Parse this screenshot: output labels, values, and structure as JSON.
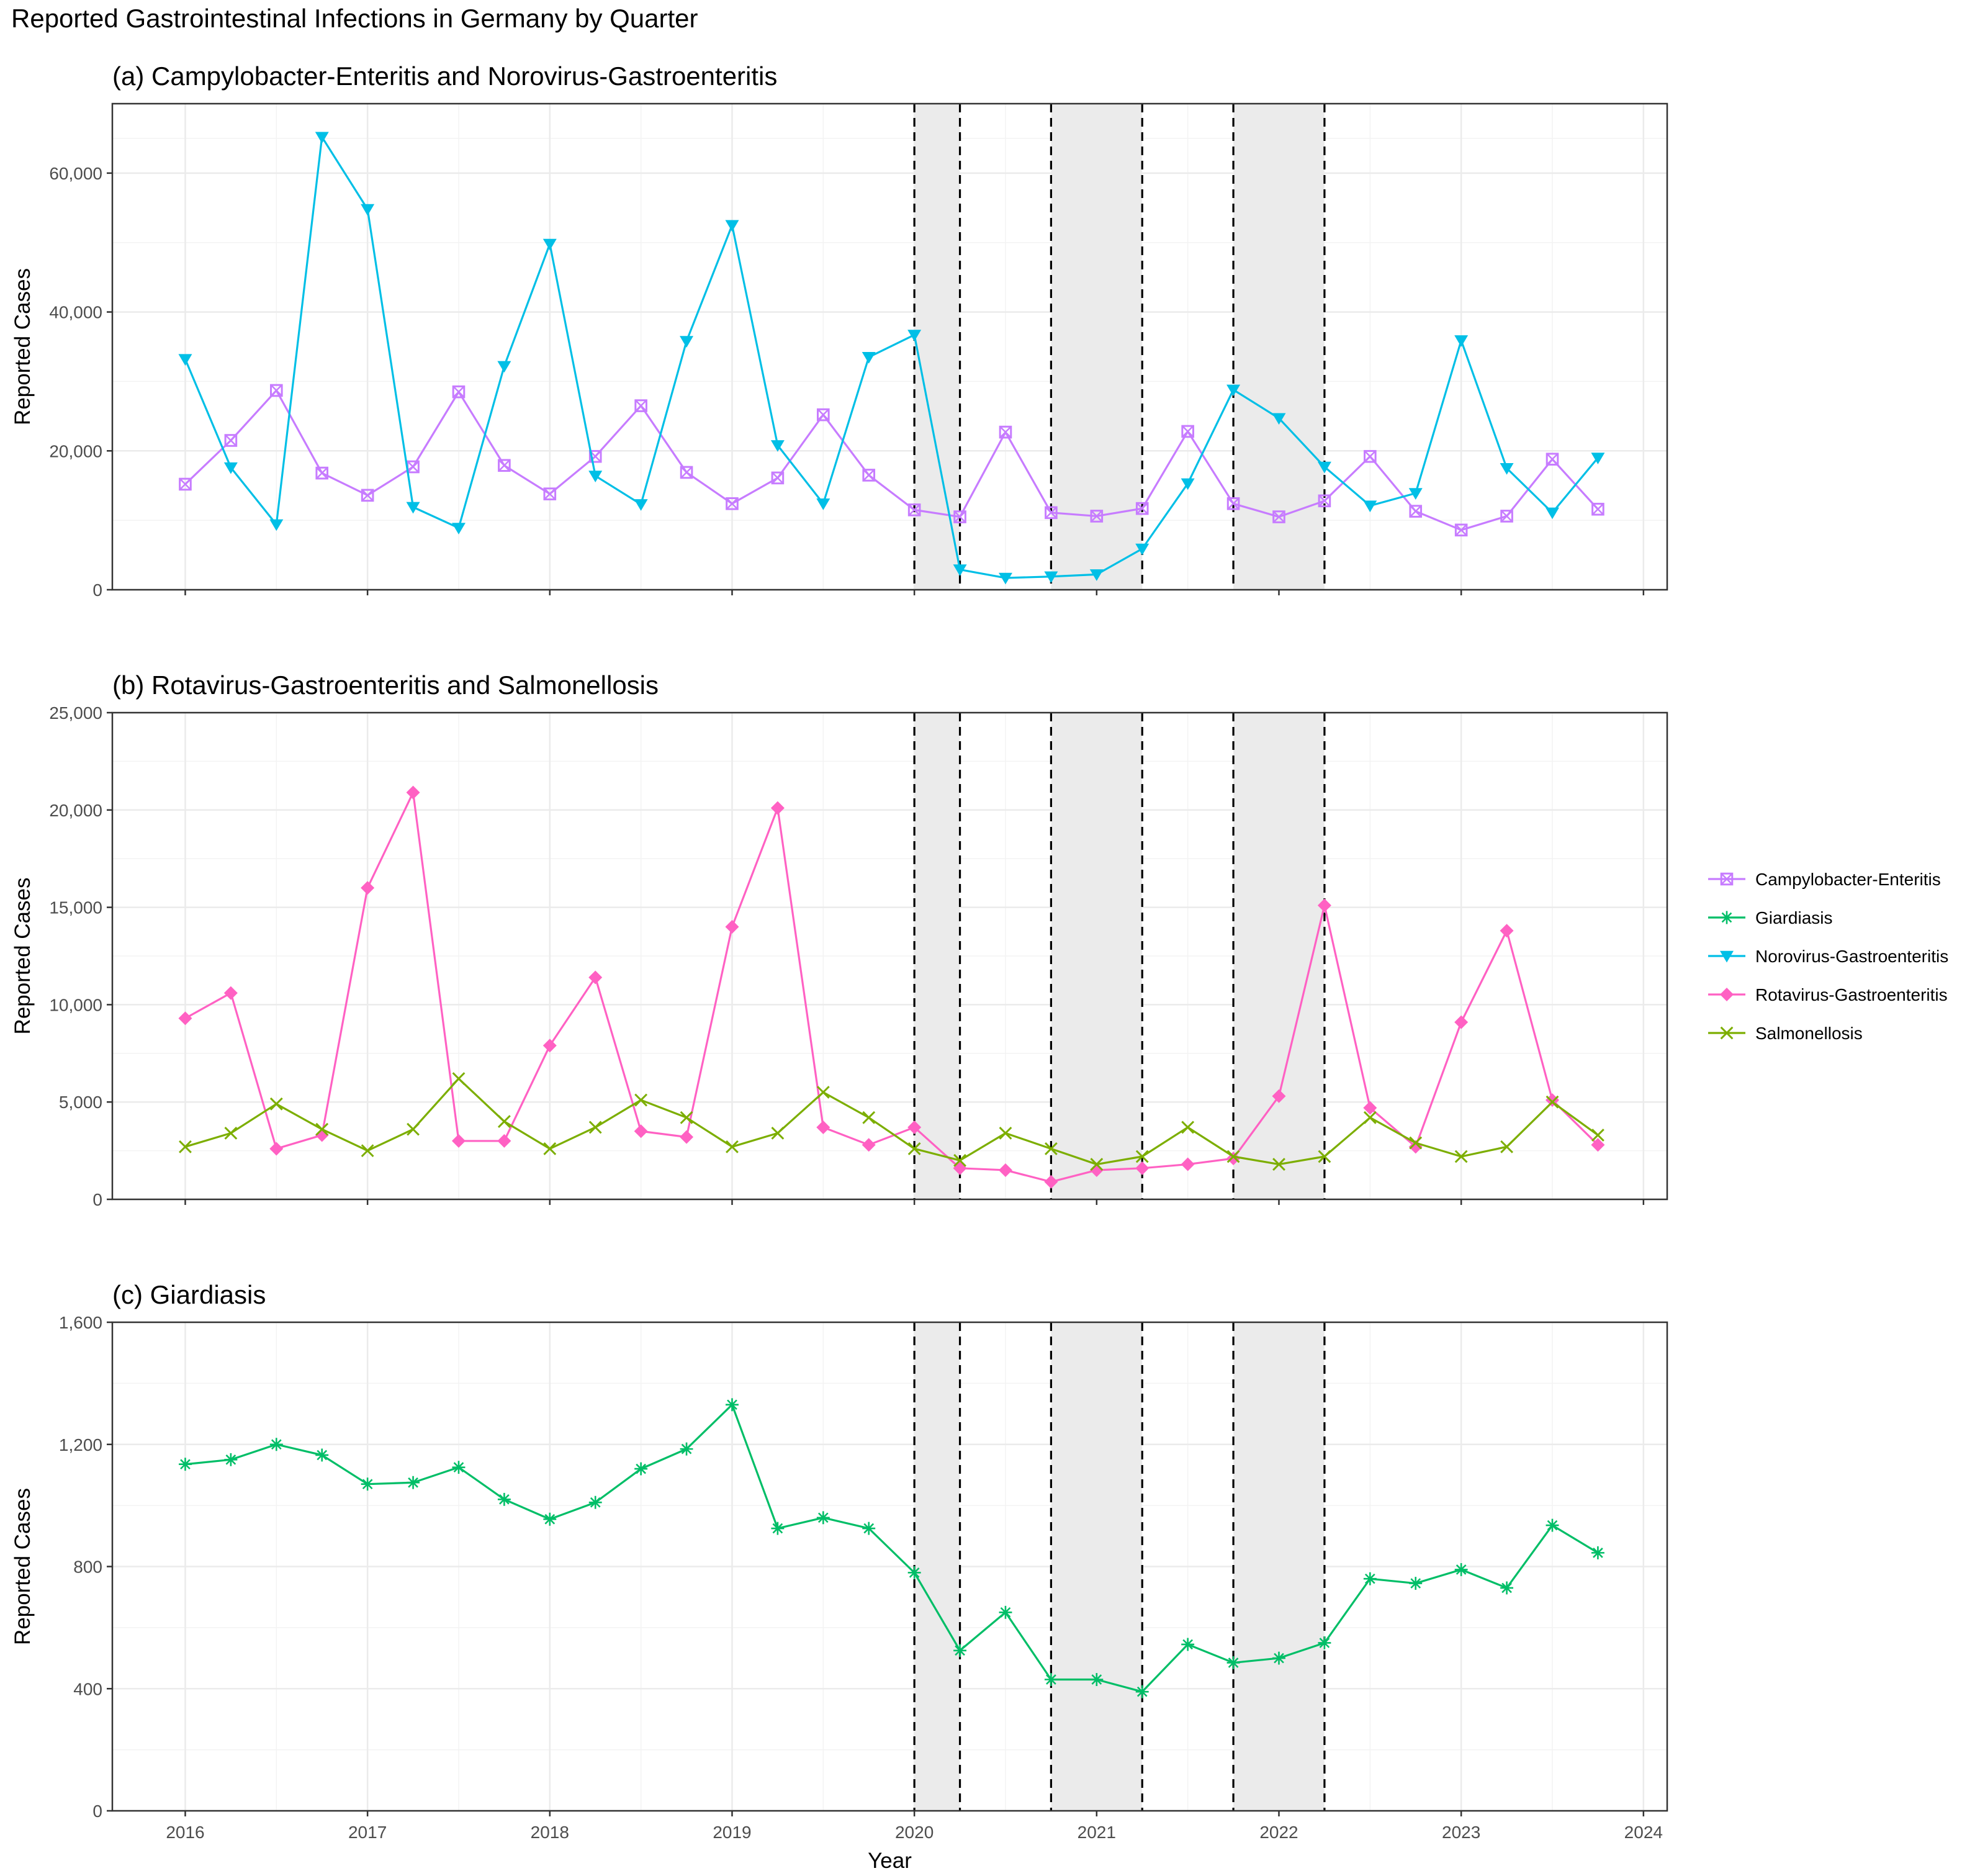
{
  "title": "Reported Gastrointestinal Infections in Germany by Quarter",
  "colors": {
    "campylobacter": "#c77cff",
    "giardiasis": "#00be67",
    "norovirus": "#00bfe6",
    "rotavirus": "#ff61c3",
    "salmonellosis": "#7cae00",
    "shading": "#ebebeb",
    "grid": "#ebebeb",
    "axis_text": "#4d4d4d"
  },
  "legend": {
    "items": [
      {
        "key": "campylobacter",
        "label": "Campylobacter-Enteritis",
        "shape": "square-x"
      },
      {
        "key": "giardiasis",
        "label": "Giardiasis",
        "shape": "asterisk"
      },
      {
        "key": "norovirus",
        "label": "Norovirus-Gastroenteritis",
        "shape": "triangle-down"
      },
      {
        "key": "rotavirus",
        "label": "Rotavirus-Gastroenteritis",
        "shape": "diamond"
      },
      {
        "key": "salmonellosis",
        "label": "Salmonellosis",
        "shape": "x"
      }
    ]
  },
  "chart_data": [
    {
      "type": "line",
      "title": "(a) Campylobacter-Enteritis and Norovirus-Gastroenteritis",
      "xlabel": "",
      "ylabel": "Reported Cases",
      "xlim": [
        2015.6,
        2024.13
      ],
      "ylim": [
        0,
        70000
      ],
      "yticks": [
        0,
        20000,
        40000,
        60000
      ],
      "ytick_labels": [
        "0",
        "20,000",
        "40,000",
        "60,000"
      ],
      "xticks": [
        2016,
        2017,
        2018,
        2019,
        2020,
        2021,
        2022,
        2023,
        2024
      ],
      "show_xtick_labels": false,
      "shaded_periods": [
        [
          2020.0,
          2020.25
        ],
        [
          2020.75,
          2021.25
        ],
        [
          2021.75,
          2022.25
        ]
      ],
      "series": [
        {
          "name": "Campylobacter-Enteritis",
          "key": "campylobacter",
          "shape": "square-x",
          "values": [
            15200,
            21500,
            28700,
            16800,
            13600,
            17700,
            28500,
            17900,
            13800,
            19200,
            26500,
            16900,
            12400,
            16100,
            25200,
            16500,
            11500,
            10500,
            22700,
            11100,
            10600,
            11700,
            22800,
            12400,
            10500,
            12800,
            19200,
            11300,
            8600,
            10600,
            18800,
            11600
          ]
        },
        {
          "name": "Norovirus-Gastroenteritis",
          "key": "norovirus",
          "shape": "triangle-down",
          "values": [
            33200,
            17600,
            9400,
            65200,
            54800,
            11900,
            8900,
            32200,
            49800,
            16400,
            12300,
            35800,
            52500,
            20800,
            12400,
            33500,
            36700,
            2900,
            1700,
            1900,
            2200,
            5900,
            15300,
            28800,
            24700,
            17700,
            12100,
            13900,
            35900,
            17500,
            11100,
            19000
          ]
        }
      ]
    },
    {
      "type": "line",
      "title": "(b) Rotavirus-Gastroenteritis and Salmonellosis",
      "xlabel": "",
      "ylabel": "Reported Cases",
      "xlim": [
        2015.6,
        2024.13
      ],
      "ylim": [
        0,
        25000
      ],
      "yticks": [
        0,
        5000,
        10000,
        15000,
        20000,
        25000
      ],
      "ytick_labels": [
        "0",
        "5,000",
        "10,000",
        "15,000",
        "20,000",
        "25,000"
      ],
      "xticks": [
        2016,
        2017,
        2018,
        2019,
        2020,
        2021,
        2022,
        2023,
        2024
      ],
      "show_xtick_labels": false,
      "shaded_periods": [
        [
          2020.0,
          2020.25
        ],
        [
          2020.75,
          2021.25
        ],
        [
          2021.75,
          2022.25
        ]
      ],
      "series": [
        {
          "name": "Rotavirus-Gastroenteritis",
          "key": "rotavirus",
          "shape": "diamond",
          "values": [
            9300,
            10600,
            2600,
            3300,
            16000,
            20900,
            3000,
            3000,
            7900,
            11400,
            3500,
            3200,
            14000,
            20100,
            3700,
            2800,
            3700,
            1600,
            1500,
            900,
            1500,
            1600,
            1800,
            2100,
            5300,
            15100,
            4700,
            2700,
            9100,
            13800,
            5100,
            2800
          ]
        },
        {
          "name": "Salmonellosis",
          "key": "salmonellosis",
          "shape": "x",
          "values": [
            2700,
            3400,
            4900,
            3600,
            2500,
            3600,
            6200,
            4000,
            2600,
            3700,
            5100,
            4200,
            2700,
            3400,
            5500,
            4200,
            2600,
            2000,
            3400,
            2600,
            1800,
            2200,
            3700,
            2200,
            1800,
            2200,
            4200,
            2900,
            2200,
            2700,
            5000,
            3300
          ]
        }
      ]
    },
    {
      "type": "line",
      "title": "(c) Giardiasis",
      "xlabel": "Year",
      "ylabel": "Reported Cases",
      "xlim": [
        2015.6,
        2024.13
      ],
      "ylim": [
        0,
        1600
      ],
      "yticks": [
        0,
        400,
        800,
        1200,
        1600
      ],
      "ytick_labels": [
        "0",
        "400",
        "800",
        "1,200",
        "1,600"
      ],
      "xticks": [
        2016,
        2017,
        2018,
        2019,
        2020,
        2021,
        2022,
        2023,
        2024
      ],
      "xtick_labels": [
        "2016",
        "2017",
        "2018",
        "2019",
        "2020",
        "2021",
        "2022",
        "2023",
        "2024"
      ],
      "show_xtick_labels": true,
      "shaded_periods": [
        [
          2020.0,
          2020.25
        ],
        [
          2020.75,
          2021.25
        ],
        [
          2021.75,
          2022.25
        ]
      ],
      "series": [
        {
          "name": "Giardiasis",
          "key": "giardiasis",
          "shape": "asterisk",
          "values": [
            1135,
            1150,
            1200,
            1165,
            1070,
            1075,
            1125,
            1020,
            955,
            1010,
            1120,
            1185,
            1330,
            925,
            960,
            925,
            780,
            525,
            650,
            430,
            430,
            390,
            545,
            485,
            500,
            550,
            760,
            745,
            790,
            730,
            935,
            845
          ]
        }
      ]
    }
  ]
}
